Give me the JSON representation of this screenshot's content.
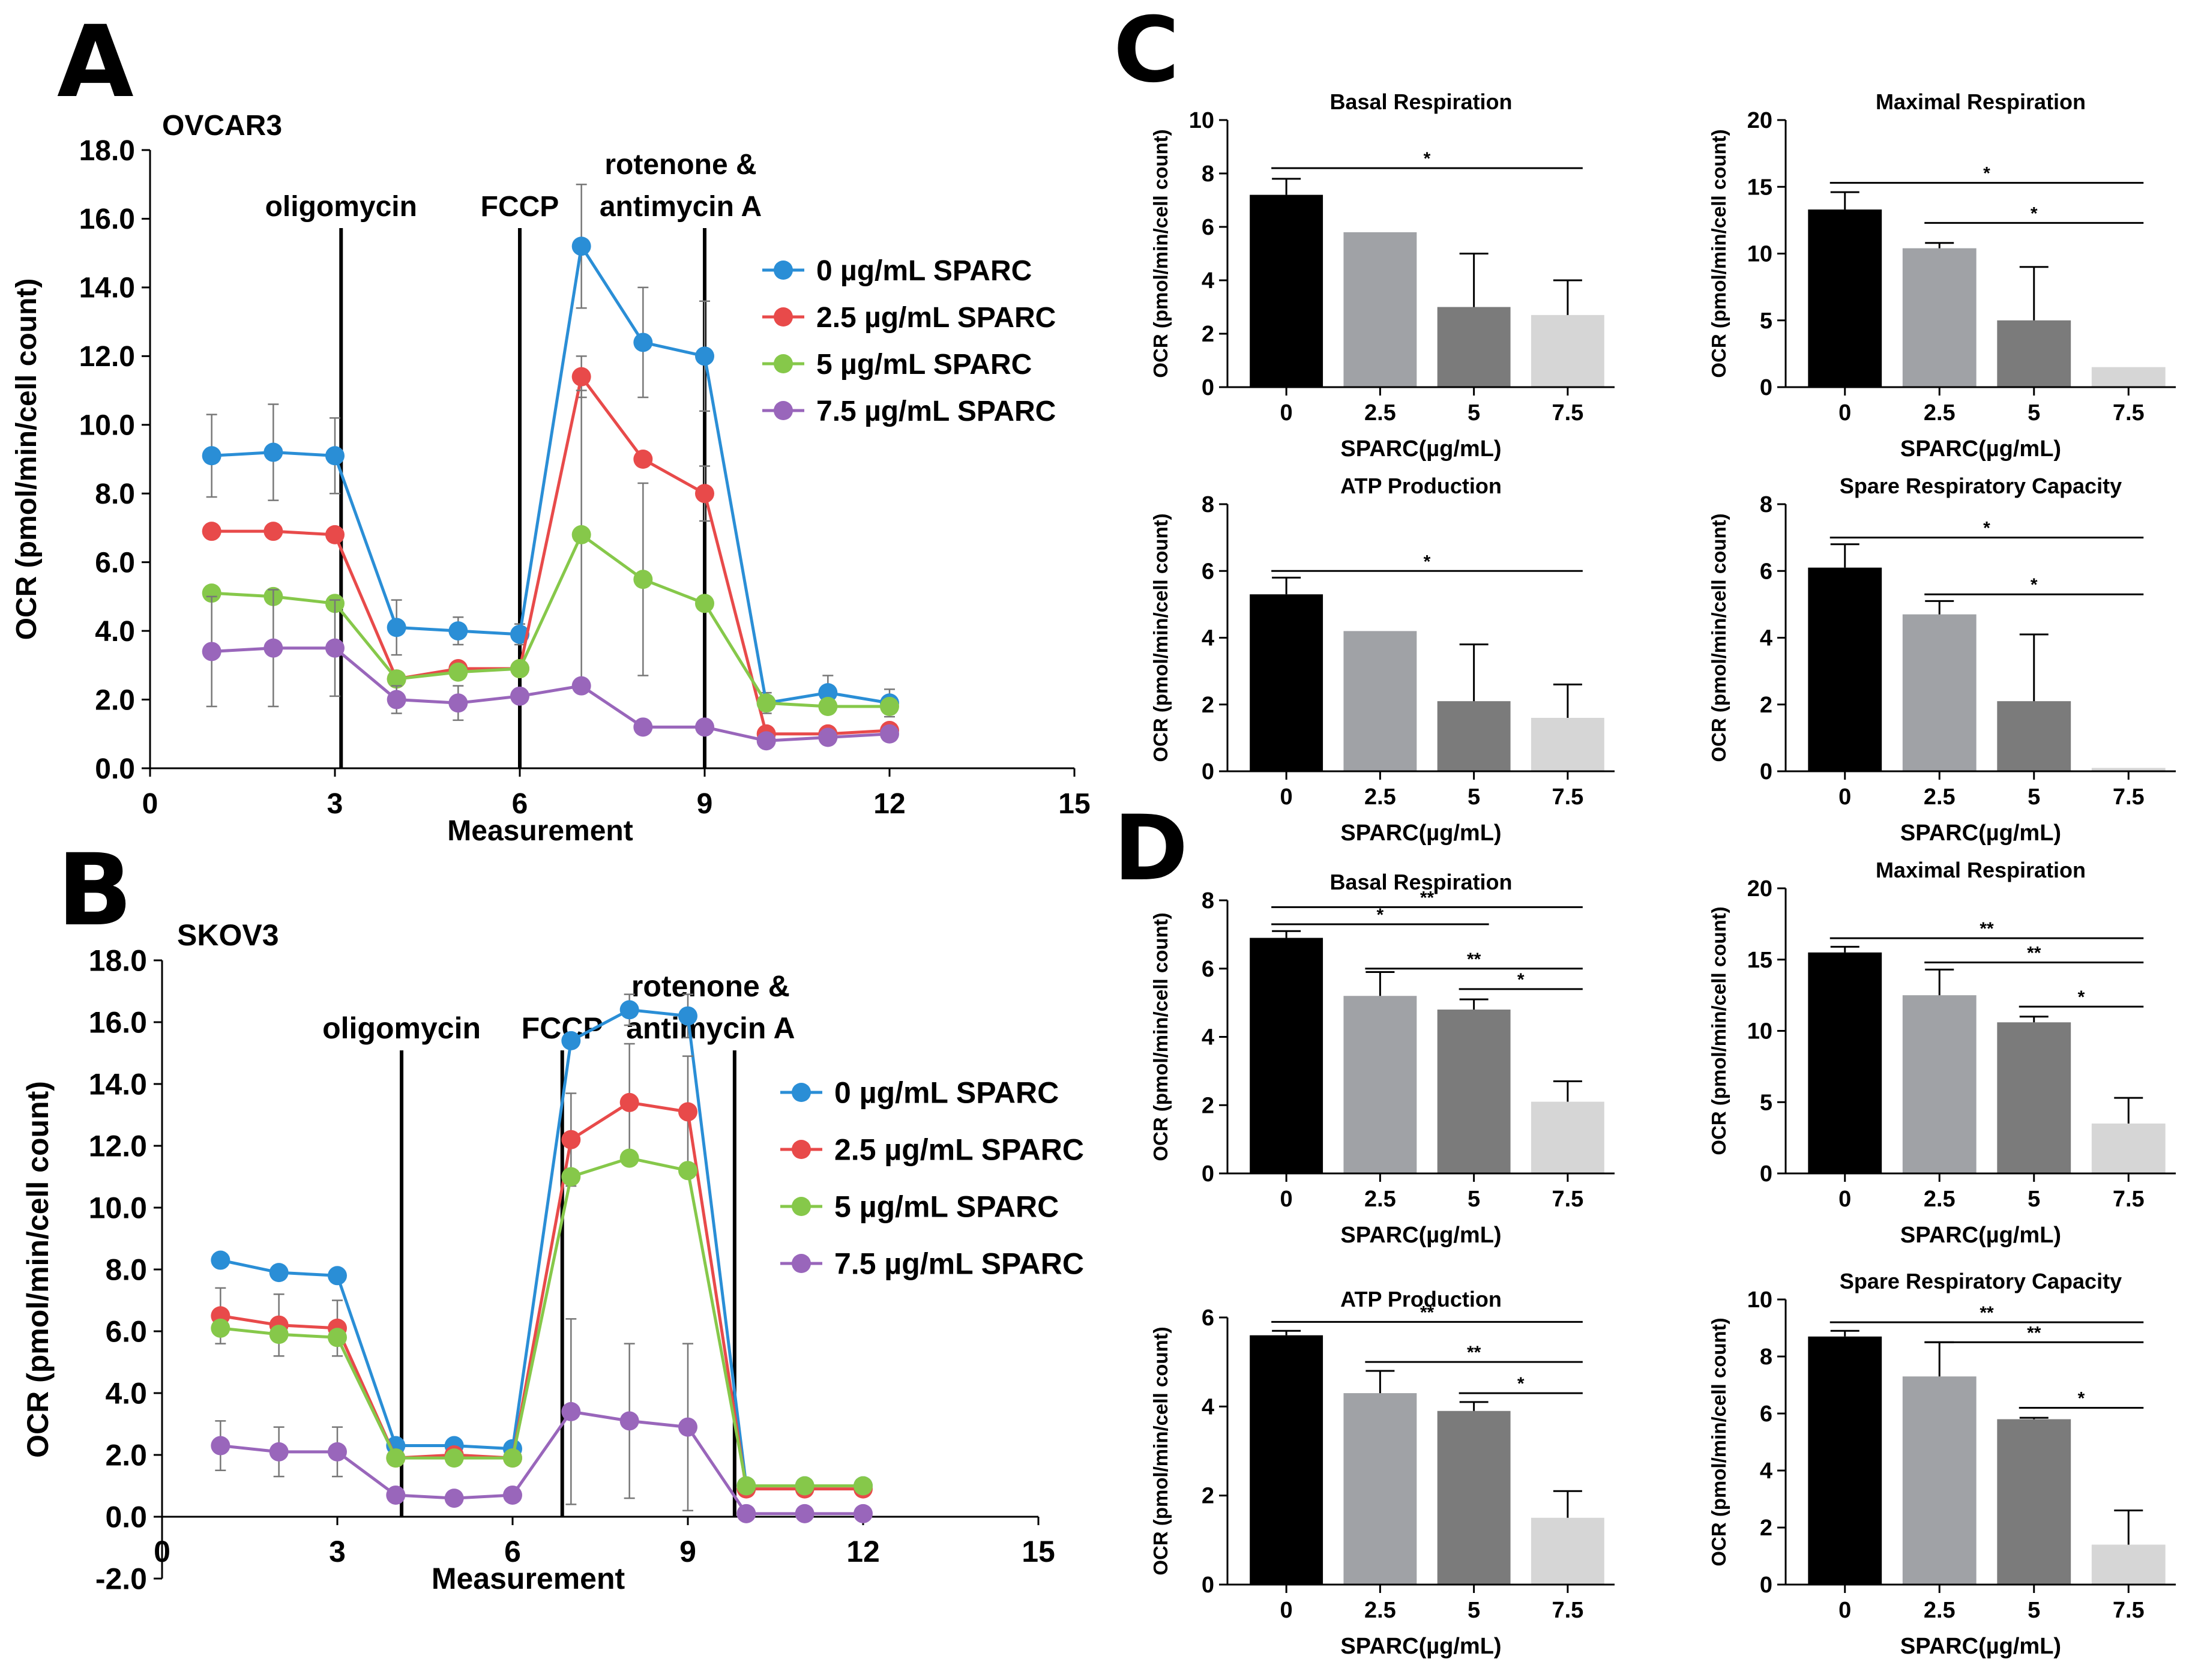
{
  "panels": {
    "a": "A",
    "b": "B",
    "c": "C",
    "d": "D"
  },
  "colors": {
    "c0": "#2a8ed6",
    "c25": "#e84a4a",
    "c5": "#86c84a",
    "c75": "#9966bb",
    "bar0": "#000000",
    "bar25": "#a0a2a6",
    "bar5": "#7b7b7b",
    "bar75": "#d6d6d6"
  },
  "chart_data": [
    {
      "id": "A",
      "type": "line",
      "title": "OVCAR3",
      "xlabel": "Measurement",
      "ylabel": "OCR (pmol/min/cell count)",
      "xlim": [
        0,
        15
      ],
      "ylim": [
        0,
        18
      ],
      "xticks": [
        0,
        3,
        6,
        9,
        12,
        15
      ],
      "yticks": [
        "0.0",
        "2.0",
        "4.0",
        "6.0",
        "8.0",
        "10.0",
        "12.0",
        "14.0",
        "16.0",
        "18.0"
      ],
      "x": [
        1,
        2,
        3,
        4,
        5,
        6,
        7,
        8,
        9,
        10,
        11,
        12
      ],
      "injections": [
        {
          "x": 3.1,
          "label": [
            "oligomycin"
          ]
        },
        {
          "x": 6.0,
          "label": [
            "FCCP"
          ]
        },
        {
          "x": 9.0,
          "label": [
            "rotenone &",
            "antimycin A"
          ]
        }
      ],
      "series": [
        {
          "name": "0 µg/mL SPARC",
          "color": "#2a8ed6",
          "values": [
            9.1,
            9.2,
            9.1,
            4.1,
            4.0,
            3.9,
            15.2,
            12.4,
            12.0,
            1.9,
            2.2,
            1.9
          ],
          "err": [
            1.2,
            1.4,
            1.1,
            0.8,
            0.4,
            0.3,
            1.8,
            1.6,
            1.6,
            0.3,
            0.5,
            0.4
          ]
        },
        {
          "name": "2.5 µg/mL SPARC",
          "color": "#e84a4a",
          "values": [
            6.9,
            6.9,
            6.8,
            2.6,
            2.9,
            2.9,
            11.4,
            9.0,
            8.0,
            1.0,
            1.0,
            1.1
          ],
          "err": [
            0,
            0,
            0,
            0,
            0,
            0,
            0.6,
            0,
            0.8,
            0,
            0,
            0
          ]
        },
        {
          "name": "5 µg/mL SPARC",
          "color": "#86c84a",
          "values": [
            5.1,
            5.0,
            4.8,
            2.6,
            2.8,
            2.9,
            6.8,
            5.5,
            4.8,
            1.9,
            1.8,
            1.8
          ],
          "err": [
            0,
            0,
            0,
            0,
            0,
            0,
            4.2,
            2.8,
            0,
            0,
            0,
            0
          ]
        },
        {
          "name": "7.5 µg/mL SPARC",
          "color": "#9966bb",
          "values": [
            3.4,
            3.5,
            3.5,
            2.0,
            1.9,
            2.1,
            2.4,
            1.2,
            1.2,
            0.8,
            0.9,
            1.0
          ],
          "err": [
            1.6,
            1.7,
            1.4,
            0.4,
            0.5,
            0,
            0,
            0,
            0,
            0,
            0,
            0
          ]
        }
      ]
    },
    {
      "id": "B",
      "type": "line",
      "title": "SKOV3",
      "xlabel": "Measurement",
      "ylabel": "OCR (pmol/min/cell count)",
      "xlim": [
        0,
        15
      ],
      "ylim": [
        -2,
        18
      ],
      "xticks": [
        0,
        3,
        6,
        9,
        12,
        15
      ],
      "yticks": [
        "-2.0",
        "0.0",
        "2.0",
        "4.0",
        "6.0",
        "8.0",
        "10.0",
        "12.0",
        "14.0",
        "16.0",
        "18.0"
      ],
      "x": [
        1,
        2,
        3,
        4,
        5,
        6,
        7,
        8,
        9,
        10,
        11,
        12
      ],
      "injections": [
        {
          "x": 4.1,
          "label": [
            "oligomycin"
          ]
        },
        {
          "x": 6.85,
          "label": [
            "FCCP"
          ]
        },
        {
          "x": 9.8,
          "label": [
            "rotenone &",
            "antimycin A"
          ]
        }
      ],
      "series": [
        {
          "name": "0 µg/mL SPARC",
          "color": "#2a8ed6",
          "values": [
            8.3,
            7.9,
            7.8,
            2.3,
            2.3,
            2.2,
            15.4,
            16.4,
            16.2,
            1.0,
            1.0,
            1.0
          ],
          "err": [
            0,
            0,
            0,
            0,
            0,
            0,
            0,
            0.5,
            0.7,
            0,
            0,
            0
          ]
        },
        {
          "name": "2.5 µg/mL SPARC",
          "color": "#e84a4a",
          "values": [
            6.5,
            6.2,
            6.1,
            1.9,
            2.0,
            1.9,
            12.2,
            13.4,
            13.1,
            0.9,
            0.9,
            0.9
          ],
          "err": [
            0.9,
            1.0,
            0.9,
            0,
            0,
            0,
            1.5,
            1.9,
            1.8,
            0,
            0,
            0
          ]
        },
        {
          "name": "5 µg/mL SPARC",
          "color": "#86c84a",
          "values": [
            6.1,
            5.9,
            5.8,
            1.9,
            1.9,
            1.9,
            11.0,
            11.6,
            11.2,
            1.0,
            1.0,
            1.0
          ],
          "err": [
            0,
            0,
            0,
            0,
            0,
            0,
            0,
            0,
            0,
            0,
            0,
            0
          ]
        },
        {
          "name": "7.5 µg/mL SPARC",
          "color": "#9966bb",
          "values": [
            2.3,
            2.1,
            2.1,
            0.7,
            0.6,
            0.7,
            3.4,
            3.1,
            2.9,
            0.1,
            0.1,
            0.1
          ],
          "err": [
            0.8,
            0.8,
            0.8,
            0,
            0,
            0,
            3.0,
            2.5,
            2.7,
            0,
            0,
            0
          ]
        }
      ]
    },
    {
      "id": "C1",
      "type": "bar",
      "title": "Basal Respiration",
      "xlabel": "SPARC(µg/mL)",
      "ylabel": "OCR (pmol/min/cell count)",
      "categories": [
        "0",
        "2.5",
        "5",
        "7.5"
      ],
      "ylim": [
        0,
        10
      ],
      "yticks": [
        "0",
        "2",
        "4",
        "6",
        "8",
        "10"
      ],
      "values": [
        7.2,
        5.8,
        3.0,
        2.7
      ],
      "err": [
        0.6,
        0,
        2.0,
        1.3
      ],
      "sig": [
        {
          "from": 0,
          "to": 3,
          "label": "*",
          "y": 8.2
        }
      ]
    },
    {
      "id": "C2",
      "type": "bar",
      "title": "Maximal Respiration",
      "xlabel": "SPARC(µg/mL)",
      "ylabel": "OCR (pmol/min/cell count)",
      "categories": [
        "0",
        "2.5",
        "5",
        "7.5"
      ],
      "ylim": [
        0,
        20
      ],
      "yticks": [
        "0",
        "5",
        "10",
        "15",
        "20"
      ],
      "values": [
        13.3,
        10.4,
        5.0,
        1.5
      ],
      "err": [
        1.3,
        0.4,
        4.0,
        0
      ],
      "sig": [
        {
          "from": 0,
          "to": 3,
          "label": "*",
          "y": 15.3
        },
        {
          "from": 1,
          "to": 3,
          "label": "*",
          "y": 12.3
        }
      ]
    },
    {
      "id": "C3",
      "type": "bar",
      "title": "ATP Production",
      "xlabel": "SPARC(µg/mL)",
      "ylabel": "OCR (pmol/min/cell count)",
      "categories": [
        "0",
        "2.5",
        "5",
        "7.5"
      ],
      "ylim": [
        0,
        8
      ],
      "yticks": [
        "0",
        "2",
        "4",
        "6",
        "8"
      ],
      "values": [
        5.3,
        4.2,
        2.1,
        1.6
      ],
      "err": [
        0.5,
        0,
        1.7,
        1.0
      ],
      "sig": [
        {
          "from": 0,
          "to": 3,
          "label": "*",
          "y": 6.0
        }
      ]
    },
    {
      "id": "C4",
      "type": "bar",
      "title": "Spare Respiratory Capacity",
      "xlabel": "SPARC(µg/mL)",
      "ylabel": "OCR (pmol/min/cell count)",
      "categories": [
        "0",
        "2.5",
        "5",
        "7.5"
      ],
      "ylim": [
        0,
        8
      ],
      "yticks": [
        "0",
        "2",
        "4",
        "6",
        "8"
      ],
      "values": [
        6.1,
        4.7,
        2.1,
        0.1
      ],
      "err": [
        0.7,
        0.4,
        2.0,
        0
      ],
      "sig": [
        {
          "from": 0,
          "to": 3,
          "label": "*",
          "y": 7.0
        },
        {
          "from": 1,
          "to": 3,
          "label": "*",
          "y": 5.3
        }
      ]
    },
    {
      "id": "D1",
      "type": "bar",
      "title": "Basal Respiration",
      "xlabel": "SPARC(µg/mL)",
      "ylabel": "OCR (pmol/min/cell count)",
      "categories": [
        "0",
        "2.5",
        "5",
        "7.5"
      ],
      "ylim": [
        0,
        8
      ],
      "yticks": [
        "0",
        "2",
        "4",
        "6",
        "8"
      ],
      "values": [
        6.9,
        5.2,
        4.8,
        2.1
      ],
      "err": [
        0.2,
        0.7,
        0.3,
        0.6
      ],
      "sig": [
        {
          "from": 0,
          "to": 3,
          "label": "**",
          "y": 7.8
        },
        {
          "from": 0,
          "to": 2,
          "label": "*",
          "y": 7.3
        },
        {
          "from": 1,
          "to": 3,
          "label": "**",
          "y": 6.0
        },
        {
          "from": 2,
          "to": 3,
          "label": "*",
          "y": 5.4
        }
      ]
    },
    {
      "id": "D2",
      "type": "bar",
      "title": "Maximal Respiration",
      "xlabel": "SPARC(µg/mL)",
      "ylabel": "OCR (pmol/min/cell count)",
      "categories": [
        "0",
        "2.5",
        "5",
        "7.5"
      ],
      "ylim": [
        0,
        20
      ],
      "yticks": [
        "0",
        "5",
        "10",
        "15",
        "20"
      ],
      "values": [
        15.5,
        12.5,
        10.6,
        3.5
      ],
      "err": [
        0.4,
        1.8,
        0.4,
        1.8
      ],
      "sig": [
        {
          "from": 0,
          "to": 3,
          "label": "**",
          "y": 16.5
        },
        {
          "from": 1,
          "to": 3,
          "label": "**",
          "y": 14.8
        },
        {
          "from": 2,
          "to": 3,
          "label": "*",
          "y": 11.7
        }
      ]
    },
    {
      "id": "D3",
      "type": "bar",
      "title": "ATP Production",
      "xlabel": "SPARC(µg/mL)",
      "ylabel": "OCR (pmol/min/cell count)",
      "categories": [
        "0",
        "2.5",
        "5",
        "7.5"
      ],
      "ylim": [
        0,
        6
      ],
      "yticks": [
        "0",
        "2",
        "4",
        "6"
      ],
      "values": [
        5.6,
        4.3,
        3.9,
        1.5
      ],
      "err": [
        0.1,
        0.5,
        0.2,
        0.6
      ],
      "sig": [
        {
          "from": 0,
          "to": 3,
          "label": "**",
          "y": 5.9
        },
        {
          "from": 1,
          "to": 3,
          "label": "**",
          "y": 5.0
        },
        {
          "from": 2,
          "to": 3,
          "label": "*",
          "y": 4.3
        }
      ]
    },
    {
      "id": "D4",
      "type": "bar",
      "title": "Spare Respiratory Capacity",
      "xlabel": "SPARC(µg/mL)",
      "ylabel": "OCR (pmol/min/cell count)",
      "categories": [
        "0",
        "2.5",
        "5",
        "7.5"
      ],
      "ylim": [
        0,
        10
      ],
      "yticks": [
        "0",
        "2",
        "4",
        "6",
        "8",
        "10"
      ],
      "values": [
        8.7,
        7.3,
        5.8,
        1.4
      ],
      "err": [
        0.2,
        1.2,
        0.05,
        1.2
      ],
      "sig": [
        {
          "from": 0,
          "to": 3,
          "label": "**",
          "y": 9.2
        },
        {
          "from": 1,
          "to": 3,
          "label": "**",
          "y": 8.5
        },
        {
          "from": 2,
          "to": 3,
          "label": "*",
          "y": 6.2
        }
      ]
    }
  ]
}
